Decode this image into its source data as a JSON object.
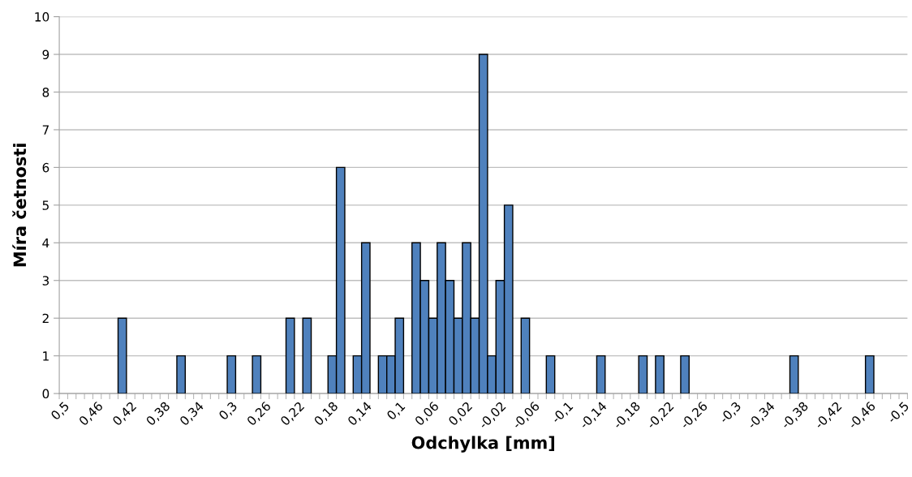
{
  "chart_data": {
    "type": "bar",
    "xlabel": "Odchylka [mm]",
    "ylabel": "Míra četnosti",
    "categories": [
      "0,5",
      null,
      null,
      null,
      "0,46",
      null,
      null,
      null,
      "0,42",
      null,
      null,
      null,
      "0,38",
      null,
      null,
      null,
      "0,34",
      null,
      null,
      null,
      "0,3",
      null,
      null,
      null,
      "0,26",
      null,
      null,
      null,
      "0,22",
      null,
      null,
      null,
      "0,18",
      null,
      null,
      null,
      "0,14",
      null,
      null,
      null,
      "0,1",
      null,
      null,
      null,
      "0,06",
      null,
      null,
      null,
      "0,02",
      null,
      null,
      null,
      "-0,02",
      null,
      null,
      null,
      "-0,06",
      null,
      null,
      null,
      "-0,1",
      null,
      null,
      null,
      "-0,14",
      null,
      null,
      null,
      "-0,18",
      null,
      null,
      null,
      "-0,22",
      null,
      null,
      null,
      "-0,26",
      null,
      null,
      null,
      "-0,3",
      null,
      null,
      null,
      "-0,34",
      null,
      null,
      null,
      "-0,38",
      null,
      null,
      null,
      "-0,42",
      null,
      null,
      null,
      "-0,46",
      null,
      null,
      null,
      "-0,5"
    ],
    "values": [
      0,
      0,
      0,
      0,
      0,
      0,
      0,
      2,
      0,
      0,
      0,
      0,
      0,
      0,
      1,
      0,
      0,
      0,
      0,
      0,
      1,
      0,
      0,
      1,
      0,
      0,
      0,
      2,
      0,
      2,
      0,
      0,
      1,
      6,
      0,
      1,
      4,
      0,
      1,
      1,
      2,
      0,
      4,
      3,
      2,
      4,
      3,
      2,
      4,
      2,
      9,
      1,
      3,
      5,
      0,
      2,
      0,
      0,
      1,
      0,
      0,
      0,
      0,
      0,
      1,
      0,
      0,
      0,
      0,
      1,
      0,
      1,
      0,
      0,
      1,
      0,
      0,
      0,
      0,
      0,
      0,
      0,
      0,
      0,
      0,
      0,
      0,
      1,
      0,
      0,
      0,
      0,
      0,
      0,
      0,
      0,
      1,
      0,
      0,
      0,
      0
    ],
    "color": "#4f81bd",
    "ylim": [
      0,
      10
    ],
    "yticks": [
      0,
      1,
      2,
      3,
      4,
      5,
      6,
      7,
      8,
      9,
      10
    ],
    "grid": "y",
    "legend": false
  }
}
